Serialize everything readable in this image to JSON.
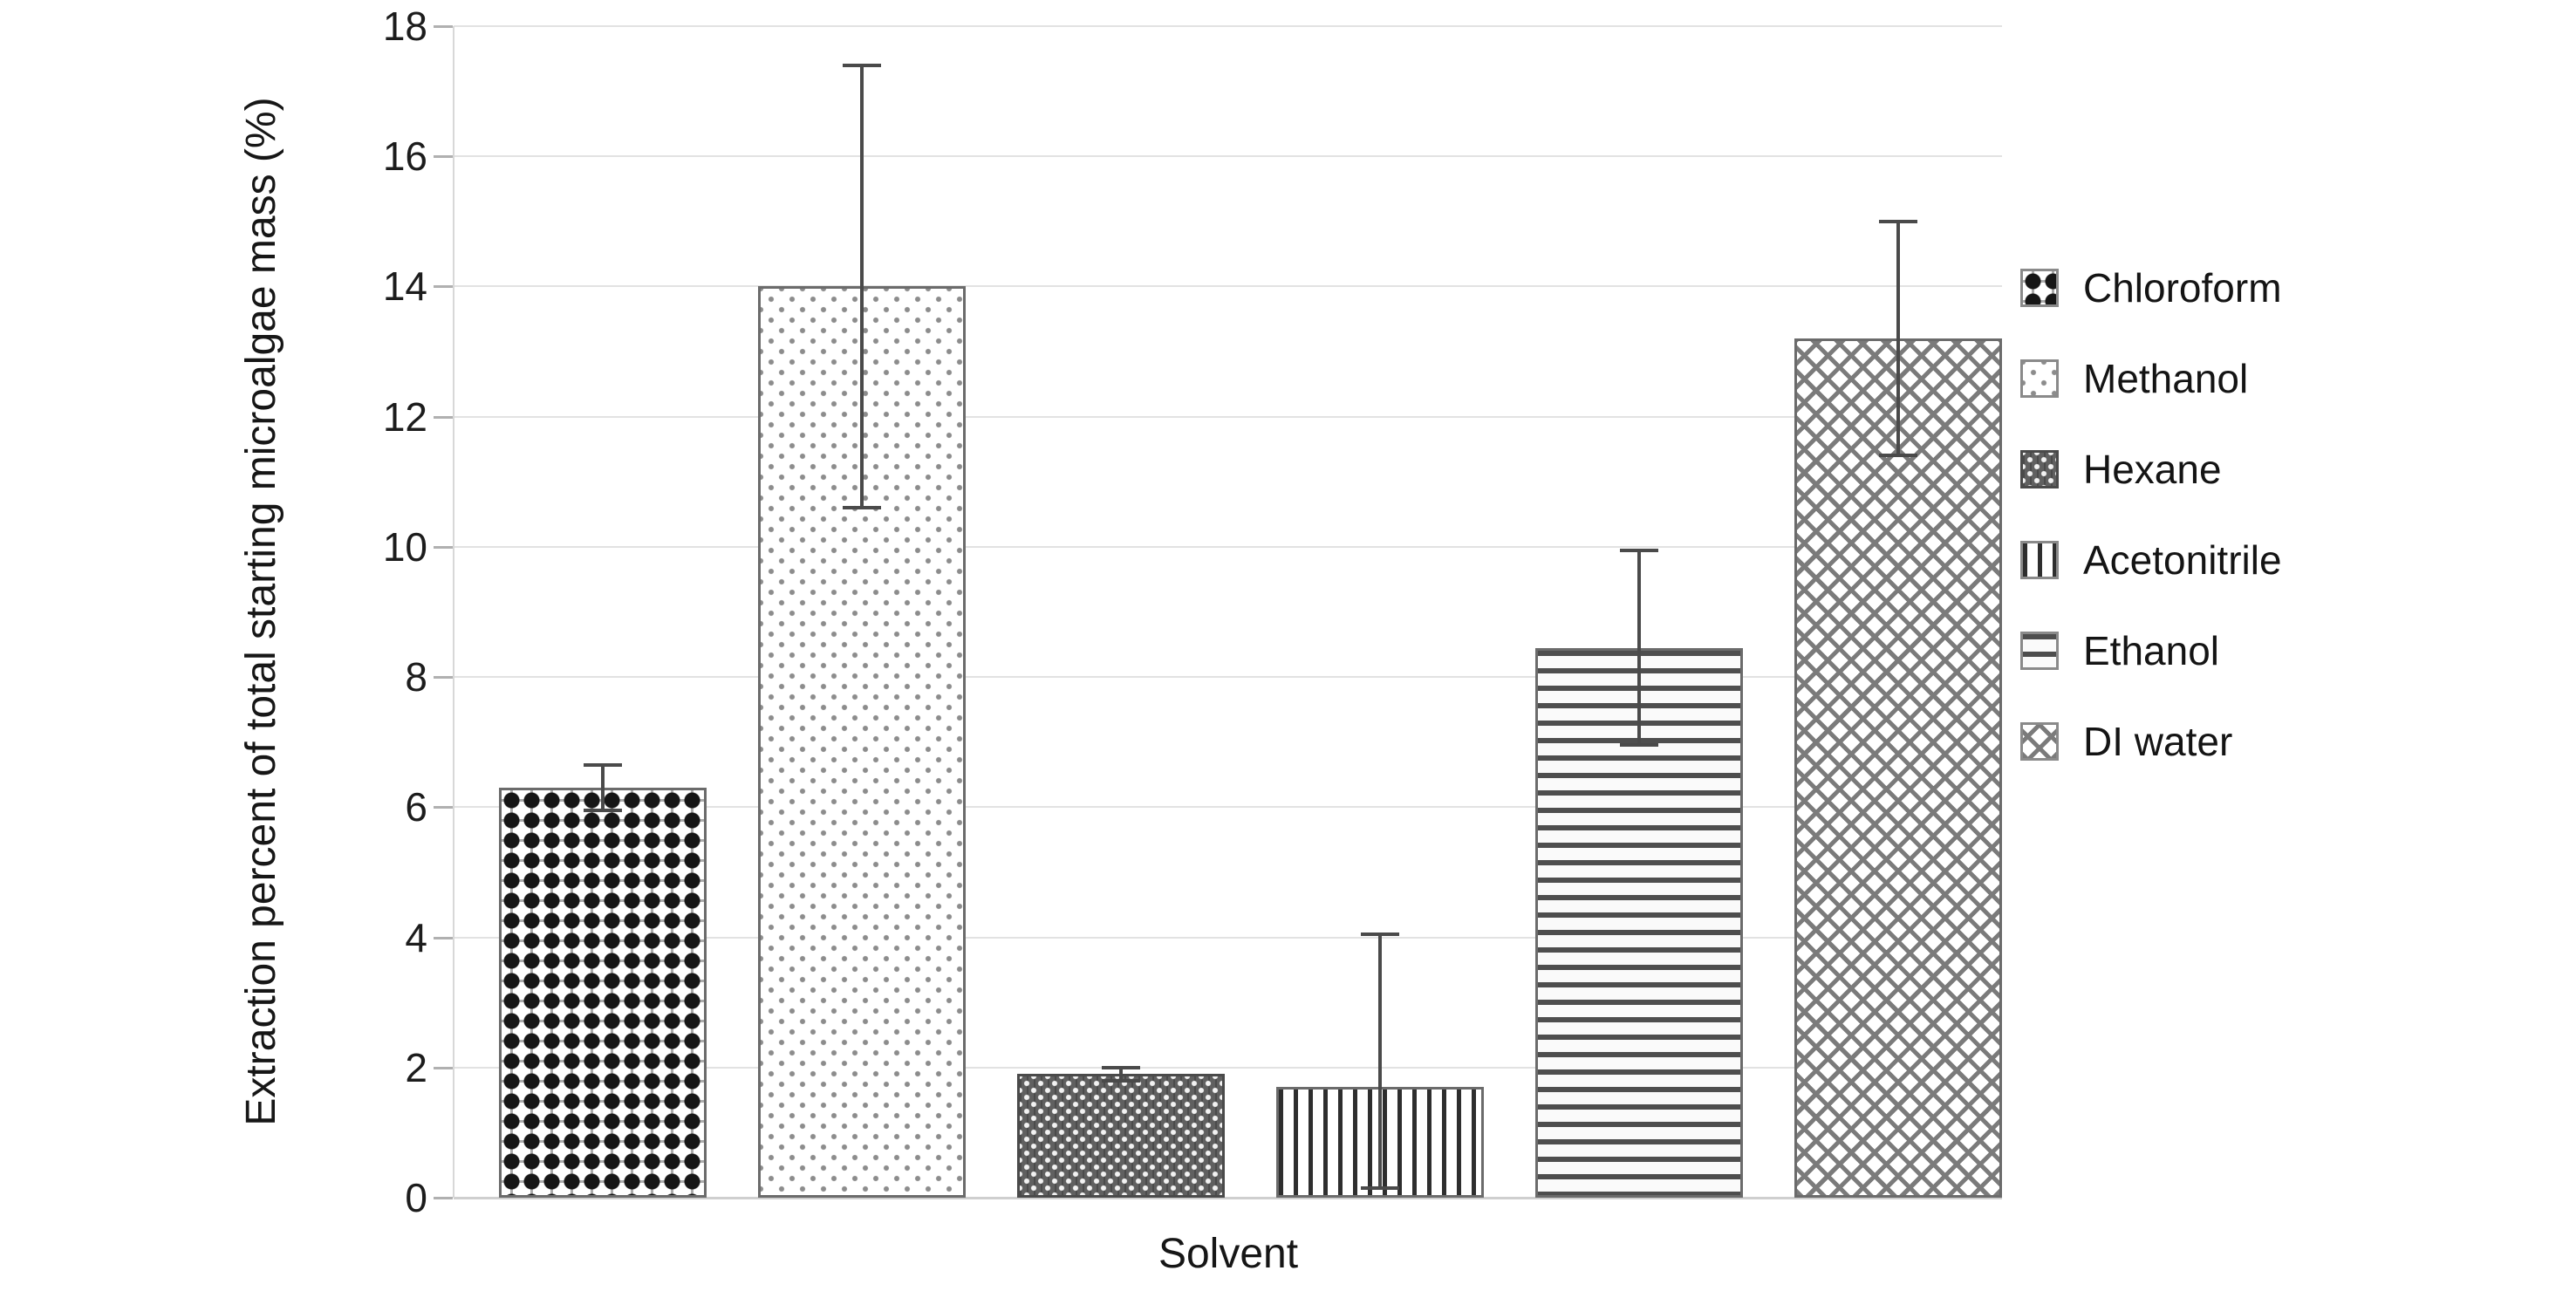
{
  "figure": {
    "type": "bar-chart-with-error-bars"
  },
  "y_axis": {
    "label": "Extraction percent of total starting microalgae mass (%)"
  },
  "x_axis": {
    "label": "Solvent"
  },
  "colors": {
    "background": "#ffffff",
    "text": "#1f1f1f",
    "gridline": "#e2e2e2",
    "baseline": "#cfcfcf",
    "tick": "#b0b0b0",
    "bar_border": "#6b6b6b",
    "error_bar": "#4a4a4a"
  },
  "legend": {
    "position": "right",
    "items": [
      {
        "label": "Chloroform",
        "pattern": "dots-large"
      },
      {
        "label": "Methanol",
        "pattern": "dots-small"
      },
      {
        "label": "Hexane",
        "pattern": "dark-dots"
      },
      {
        "label": "Acetonitrile",
        "pattern": "vlines"
      },
      {
        "label": "Ethanol",
        "pattern": "hlines"
      },
      {
        "label": "DI water",
        "pattern": "crosshatch"
      }
    ]
  },
  "chart_data": {
    "type": "bar",
    "title": "",
    "xlabel": "Solvent",
    "ylabel": "Extraction percent of total starting microalgae mass (%)",
    "ylim": [
      0,
      18
    ],
    "ytick_interval": 2,
    "ytick_labels": [
      "0",
      "2",
      "4",
      "6",
      "8",
      "10",
      "12",
      "14",
      "16",
      "18"
    ],
    "grid": true,
    "legend_position": "right",
    "categories": [
      "Chloroform",
      "Methanol",
      "Hexane",
      "Acetonitrile",
      "Ethanol",
      "DI water"
    ],
    "values": [
      6.3,
      14.0,
      1.9,
      1.7,
      8.45,
      13.2
    ],
    "error_up": [
      0.35,
      3.4,
      0.1,
      2.35,
      1.5,
      1.8
    ],
    "error_down": [
      0.35,
      3.4,
      0.1,
      1.55,
      1.5,
      1.8
    ],
    "patterns": [
      "dots-large",
      "dots-small",
      "dark-dots",
      "vlines",
      "hlines",
      "crosshatch"
    ]
  }
}
